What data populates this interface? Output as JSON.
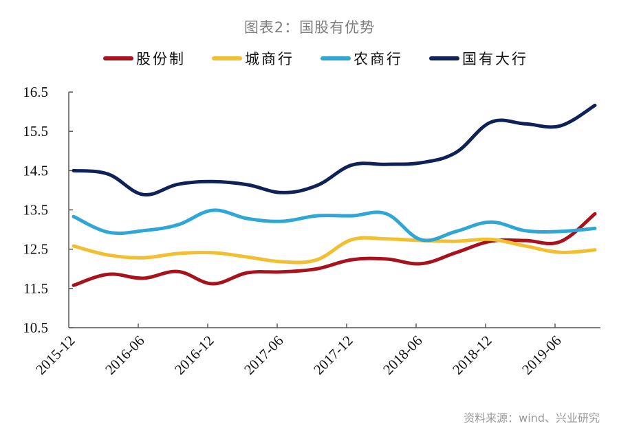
{
  "chart_data": {
    "type": "line",
    "title": "图表2：国股有优势",
    "xlabel": "",
    "ylabel": "",
    "ylim": [
      10.5,
      16.5
    ],
    "yticks": [
      "16.5",
      "15.5",
      "14.5",
      "13.5",
      "12.5",
      "11.5",
      "10.5"
    ],
    "ytick_values": [
      16.5,
      15.5,
      14.5,
      13.5,
      12.5,
      11.5,
      10.5
    ],
    "xtick_labels": [
      "2015-12",
      "2016-06",
      "2016-12",
      "2017-06",
      "2017-12",
      "2018-06",
      "2018-12",
      "2019-06"
    ],
    "x": [
      "2015-12",
      "2016-03",
      "2016-06",
      "2016-09",
      "2016-12",
      "2017-03",
      "2017-06",
      "2017-09",
      "2017-12",
      "2018-03",
      "2018-06",
      "2018-09",
      "2018-12",
      "2019-03",
      "2019-06",
      "2019-09"
    ],
    "grid": false,
    "legend_position": "top",
    "series": [
      {
        "name": "股份制",
        "color": "#a8121d",
        "values": [
          11.58,
          11.86,
          11.76,
          11.93,
          11.62,
          11.9,
          11.92,
          12.0,
          12.23,
          12.25,
          12.13,
          12.41,
          12.7,
          12.72,
          12.69,
          13.4
        ]
      },
      {
        "name": "城商行",
        "color": "#f1bf2f",
        "values": [
          12.58,
          12.35,
          12.28,
          12.39,
          12.41,
          12.3,
          12.18,
          12.23,
          12.74,
          12.76,
          12.72,
          12.7,
          12.75,
          12.58,
          12.42,
          12.48
        ]
      },
      {
        "name": "农商行",
        "color": "#2ea7d6",
        "values": [
          13.33,
          12.93,
          12.97,
          13.12,
          13.49,
          13.28,
          13.21,
          13.35,
          13.35,
          13.4,
          12.74,
          12.95,
          13.19,
          12.97,
          12.95,
          13.03
        ]
      },
      {
        "name": "国有大行",
        "color": "#0f2257",
        "values": [
          14.5,
          14.41,
          13.89,
          14.15,
          14.22,
          14.14,
          13.94,
          14.12,
          14.64,
          14.66,
          14.7,
          14.96,
          15.73,
          15.69,
          15.64,
          16.16
        ]
      }
    ],
    "source": "资料来源：wind、兴业研究"
  }
}
